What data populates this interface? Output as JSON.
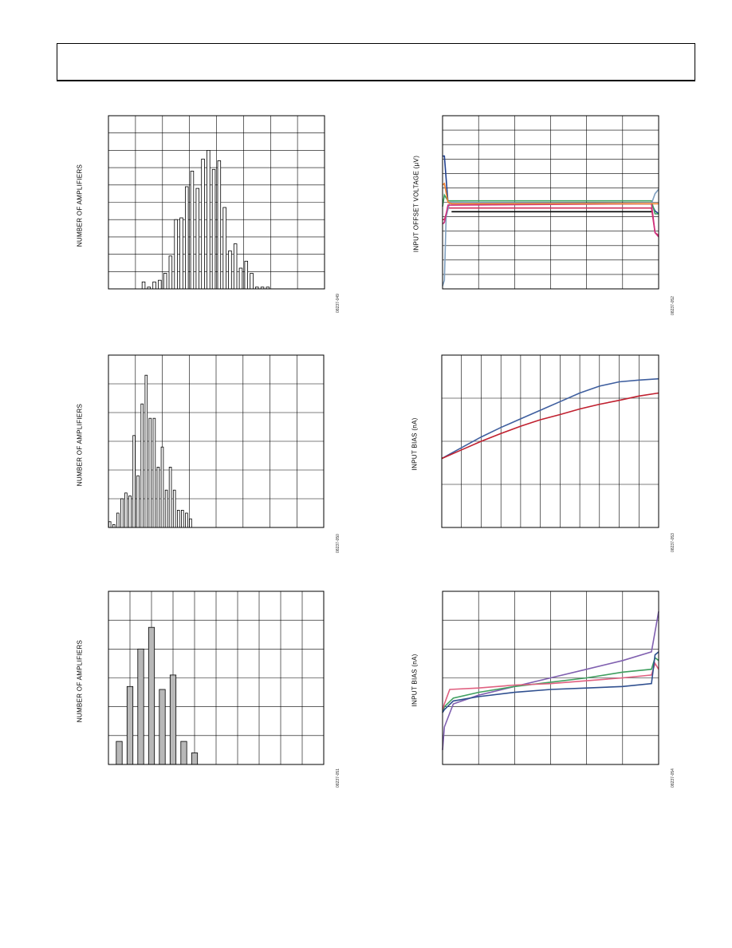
{
  "page": {
    "header": ""
  },
  "chart_data": [
    {
      "type": "bar",
      "ylabel": "NUMBER OF AMPLIFIERS",
      "figure_id": "08237-049",
      "xlim": [
        0,
        8
      ],
      "ylim": [
        0,
        10
      ],
      "x": [
        1.3,
        1.5,
        1.7,
        1.9,
        2.1,
        2.3,
        2.5,
        2.7,
        2.9,
        3.1,
        3.3,
        3.5,
        3.7,
        3.9,
        4.1,
        4.3,
        4.5,
        4.7,
        4.9,
        5.1,
        5.3,
        5.5,
        5.7,
        5.9
      ],
      "values": [
        0.4,
        0.1,
        0.4,
        0.5,
        0.9,
        1.9,
        4.0,
        4.1,
        5.9,
        6.8,
        5.8,
        7.5,
        8.0,
        6.9,
        7.4,
        4.7,
        2.2,
        2.6,
        1.2,
        1.6,
        0.9,
        0.1,
        0.1,
        0.1
      ]
    },
    {
      "type": "bar",
      "ylabel": "NUMBER OF AMPLIFIERS",
      "figure_id": "08237-050",
      "xlim": [
        0,
        8
      ],
      "ylim": [
        0,
        6
      ],
      "x": [
        0.05,
        0.2,
        0.35,
        0.5,
        0.65,
        0.8,
        0.95,
        1.1,
        1.25,
        1.4,
        1.55,
        1.7,
        1.85,
        2.0,
        2.15,
        2.3,
        2.45,
        2.6,
        2.75,
        2.9,
        3.05,
        3.2,
        3.35,
        3.5,
        3.65,
        3.8
      ],
      "values": [
        0.2,
        0.1,
        0.5,
        1.0,
        1.2,
        1.1,
        3.2,
        1.8,
        4.3,
        5.3,
        3.8,
        3.8,
        2.1,
        2.8,
        1.3,
        2.1,
        1.3,
        0.6,
        0.6,
        0.5,
        0.3,
        0,
        0,
        0,
        0,
        0
      ]
    },
    {
      "type": "bar",
      "ylabel": "NUMBER OF AMPLIFIERS",
      "figure_id": "08237-051",
      "xlim": [
        0,
        10
      ],
      "ylim": [
        0,
        6
      ],
      "x": [
        0.5,
        1.0,
        1.5,
        2.0,
        2.5,
        3.0,
        3.5,
        4.0,
        4.5
      ],
      "values": [
        0.8,
        2.7,
        4.0,
        4.75,
        2.6,
        3.1,
        0.8,
        0.4,
        0
      ]
    },
    {
      "type": "line",
      "ylabel": "INPUT OFFSET VOLTAGE (µV)",
      "figure_id": "08237-052",
      "xlim": [
        0,
        6
      ],
      "ylim": [
        0,
        12
      ],
      "grid": true,
      "series": [
        {
          "color": "#1f3f8f",
          "x": [
            0,
            0.05,
            0.15,
            0.25,
            5.8,
            5.9,
            6.0
          ],
          "y": [
            9.2,
            9.2,
            6.0,
            5.9,
            5.9,
            5.4,
            5.2
          ]
        },
        {
          "color": "#3f9f5f",
          "x": [
            0,
            0.05,
            0.15,
            0.25,
            5.8,
            5.9,
            6.0
          ],
          "y": [
            5.7,
            6.5,
            6.1,
            6.1,
            6.1,
            5.2,
            5.2
          ]
        },
        {
          "color": "#d0305a",
          "x": [
            0,
            0.05,
            0.15,
            0.25,
            5.8,
            5.9,
            6.0
          ],
          "y": [
            4.8,
            4.8,
            5.6,
            5.6,
            5.6,
            3.9,
            3.7
          ]
        },
        {
          "color": "#7f9fbf",
          "x": [
            0,
            0.05,
            0.1,
            0.2,
            5.8,
            5.9,
            6.0
          ],
          "y": [
            0.2,
            0.6,
            5.0,
            6.0,
            5.9,
            6.6,
            6.9
          ]
        },
        {
          "color": "#d0307f",
          "x": [
            0,
            0.05,
            0.15,
            0.25,
            5.8,
            5.9,
            6.0
          ],
          "y": [
            4.5,
            4.6,
            5.8,
            5.8,
            5.9,
            3.9,
            3.6
          ]
        },
        {
          "color": "#f07f30",
          "x": [
            0,
            0.05,
            0.15,
            0.25,
            5.8,
            5.9,
            6.0
          ],
          "y": [
            7.2,
            7.3,
            6.0,
            5.9,
            5.9,
            5.9,
            5.9
          ]
        },
        {
          "color": "#000000",
          "x": [
            0.25,
            5.8
          ],
          "y": [
            5.35,
            5.35
          ]
        }
      ]
    },
    {
      "type": "line",
      "ylabel": "INPUT BIAS (nA)",
      "figure_id": "08237-053",
      "xlim": [
        0,
        11
      ],
      "ylim": [
        0,
        4
      ],
      "grid": true,
      "series": [
        {
          "color": "#3f5f9f",
          "x": [
            0,
            1,
            2,
            3,
            4,
            5,
            6,
            7,
            8,
            9,
            10,
            11
          ],
          "y": [
            1.6,
            1.85,
            2.1,
            2.32,
            2.52,
            2.72,
            2.92,
            3.12,
            3.28,
            3.38,
            3.42,
            3.45
          ]
        },
        {
          "color": "#c0202f",
          "x": [
            0,
            1,
            2,
            3,
            4,
            5,
            6,
            7,
            8,
            9,
            10,
            11
          ],
          "y": [
            1.6,
            1.8,
            2.0,
            2.18,
            2.35,
            2.5,
            2.62,
            2.75,
            2.86,
            2.95,
            3.05,
            3.12
          ]
        }
      ]
    },
    {
      "type": "line",
      "ylabel": "INPUT BIAS (nA)",
      "figure_id": "08237-054",
      "xlim": [
        0,
        6
      ],
      "ylim": [
        0,
        6
      ],
      "grid": true,
      "series": [
        {
          "color": "#8060b0",
          "x": [
            0,
            0.05,
            0.3,
            1,
            2,
            3,
            4,
            5,
            5.8,
            6.0
          ],
          "y": [
            0.5,
            1.3,
            2.1,
            2.4,
            2.7,
            3.0,
            3.3,
            3.6,
            3.9,
            5.3
          ]
        },
        {
          "color": "#3f9f5f",
          "x": [
            0,
            0.05,
            0.3,
            1,
            2,
            3,
            4,
            5,
            5.8,
            5.9,
            6.0
          ],
          "y": [
            1.8,
            2.0,
            2.3,
            2.5,
            2.7,
            2.85,
            3.0,
            3.2,
            3.3,
            3.7,
            3.6
          ]
        },
        {
          "color": "#e06080",
          "x": [
            0,
            0.05,
            0.2,
            1,
            2,
            3,
            4,
            5,
            5.8,
            5.9,
            6.0
          ],
          "y": [
            1.9,
            2.1,
            2.6,
            2.65,
            2.75,
            2.8,
            2.9,
            3.0,
            3.1,
            3.5,
            3.3
          ]
        },
        {
          "color": "#2f4f8f",
          "x": [
            0,
            0.05,
            0.3,
            1,
            2,
            3,
            4,
            5,
            5.8,
            5.9,
            6.0
          ],
          "y": [
            1.8,
            1.9,
            2.2,
            2.35,
            2.5,
            2.6,
            2.65,
            2.7,
            2.8,
            3.8,
            3.9
          ]
        }
      ]
    }
  ]
}
